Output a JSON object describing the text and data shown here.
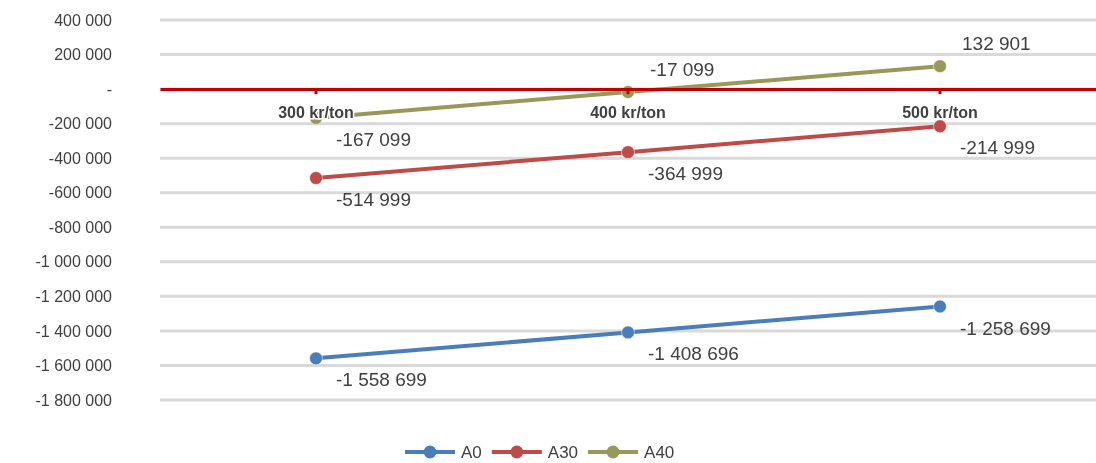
{
  "chart_data": {
    "type": "line",
    "categories": [
      "300 kr/ton",
      "400 kr/ton",
      "500 kr/ton"
    ],
    "series": [
      {
        "name": "A0",
        "color": "#4a7ebb",
        "values": [
          -1558699,
          -1408696,
          -1258699
        ]
      },
      {
        "name": "A30",
        "color": "#be4b48",
        "values": [
          -514999,
          -364999,
          -214999
        ]
      },
      {
        "name": "A40",
        "color": "#98985a",
        "values": [
          -167099,
          -17099,
          132901
        ]
      }
    ],
    "ylim": [
      -1800000,
      400000
    ],
    "yticks": [
      {
        "value": -1800000,
        "label": "-1 800 000"
      },
      {
        "value": -1600000,
        "label": "-1 600 000"
      },
      {
        "value": -1400000,
        "label": "-1 400 000"
      },
      {
        "value": -1200000,
        "label": "-1 200 000"
      },
      {
        "value": -1000000,
        "label": "-1 000 000"
      },
      {
        "value": -800000,
        "label": "-800 000"
      },
      {
        "value": -600000,
        "label": "-600 000"
      },
      {
        "value": -400000,
        "label": "-400 000"
      },
      {
        "value": -200000,
        "label": "-200 000"
      },
      {
        "value": 0,
        "label": "-"
      },
      {
        "value": 200000,
        "label": "200 000"
      },
      {
        "value": 400000,
        "label": "400 000"
      }
    ],
    "grid": "y",
    "legend": "bottom",
    "marker": "circle",
    "line_style": "solid",
    "data_labels": true
  }
}
